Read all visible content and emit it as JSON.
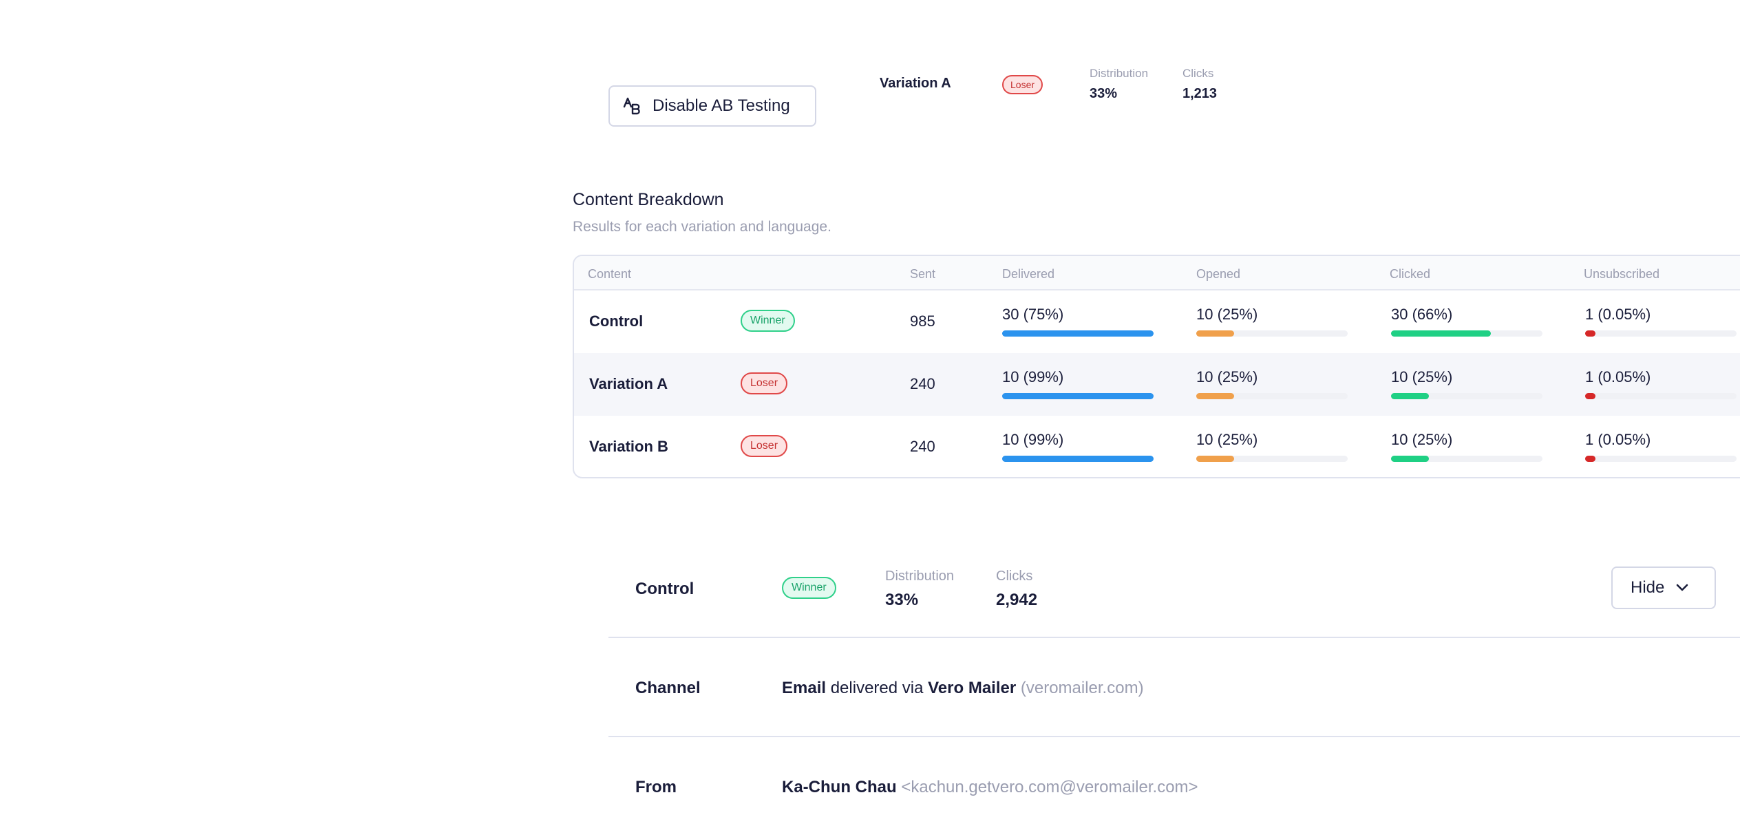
{
  "ab_button": {
    "label": "Disable AB Testing"
  },
  "top_summary": {
    "variation": "Variation A",
    "badge": "Loser",
    "distribution_label": "Distribution",
    "distribution_value": "33%",
    "clicks_label": "Clicks",
    "clicks_value": "1,213"
  },
  "content_breakdown": {
    "title": "Content Breakdown",
    "subtitle": "Results for each variation and language.",
    "headers": {
      "content": "Content",
      "sent": "Sent",
      "delivered": "Delivered",
      "opened": "Opened",
      "clicked": "Clicked",
      "unsubscribed": "Unsubscribed"
    },
    "colors": {
      "delivered": "#2b93ee",
      "opened": "#f0a04b",
      "clicked": "#1fd084",
      "unsubscribed": "#d62828"
    },
    "rows": [
      {
        "name": "Control",
        "badge": "Winner",
        "badge_type": "winner",
        "sent": "985",
        "delivered": "30 (75%)",
        "delivered_fill": 1.0,
        "opened": "10 (25%)",
        "opened_fill": 0.25,
        "clicked": "30 (66%)",
        "clicked_fill": 0.66,
        "unsubscribed": "1 (0.05%)",
        "unsubscribed_fill": 0.07
      },
      {
        "name": "Variation A",
        "badge": "Loser",
        "badge_type": "loser",
        "sent": "240",
        "delivered": "10 (99%)",
        "delivered_fill": 1.0,
        "opened": "10 (25%)",
        "opened_fill": 0.25,
        "clicked": "10 (25%)",
        "clicked_fill": 0.25,
        "unsubscribed": "1 (0.05%)",
        "unsubscribed_fill": 0.07
      },
      {
        "name": "Variation B",
        "badge": "Loser",
        "badge_type": "loser",
        "sent": "240",
        "delivered": "10 (99%)",
        "delivered_fill": 1.0,
        "opened": "10 (25%)",
        "opened_fill": 0.25,
        "clicked": "10 (25%)",
        "clicked_fill": 0.25,
        "unsubscribed": "1 (0.05%)",
        "unsubscribed_fill": 0.07
      }
    ]
  },
  "variation_detail": {
    "name": "Control",
    "badge": "Winner",
    "distribution_label": "Distribution",
    "distribution_value": "33%",
    "clicks_label": "Clicks",
    "clicks_value": "2,942",
    "hide_label": "Hide",
    "channel": {
      "label": "Channel",
      "type": "Email",
      "via_text": "delivered via",
      "provider": "Vero Mailer",
      "domain": "(veromailer.com)"
    },
    "from": {
      "label": "From",
      "name": "Ka-Chun Chau",
      "email": "<kachun.getvero.com@veromailer.com>"
    }
  }
}
